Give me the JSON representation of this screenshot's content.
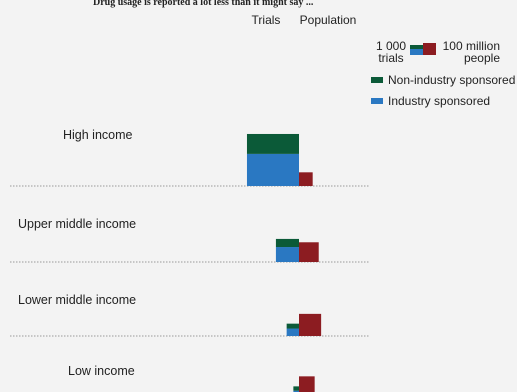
{
  "header_text": "Drug usage is reported a lot less than it might say ...",
  "chart_data": {
    "type": "bar",
    "orientation": "horizontal-grouped-area",
    "column_headers": [
      "Trials",
      "Population"
    ],
    "categories": [
      "High income",
      "Upper middle income",
      "Lower middle income",
      "Low income"
    ],
    "units": {
      "trials": "trials",
      "population": "million people"
    },
    "series": [
      {
        "name": "Non-industry sponsored",
        "measure": "trials",
        "color": "#0b5a38",
        "values": [
          7200,
          1300,
          420,
          170
        ]
      },
      {
        "name": "Industry sponsored",
        "measure": "trials",
        "color": "#2a78c2",
        "values": [
          11600,
          2400,
          640,
          50
        ]
      }
    ],
    "population": {
      "color": "#8c1c21",
      "values": [
        130,
        270,
        340,
        170
      ]
    },
    "legend": {
      "scale_trials_label_1": "1 000",
      "scale_trials_label_2": "trials",
      "scale_population_label_1": "100 million",
      "scale_population_label_2": "people",
      "non_industry_label": "Non-industry sponsored",
      "industry_label": "Industry sponsored",
      "placement": "top-right"
    },
    "colors": {
      "non_industry": "#0b5a38",
      "industry": "#2a78c2",
      "population": "#8c1c21",
      "background": "#f3f3f3"
    }
  }
}
